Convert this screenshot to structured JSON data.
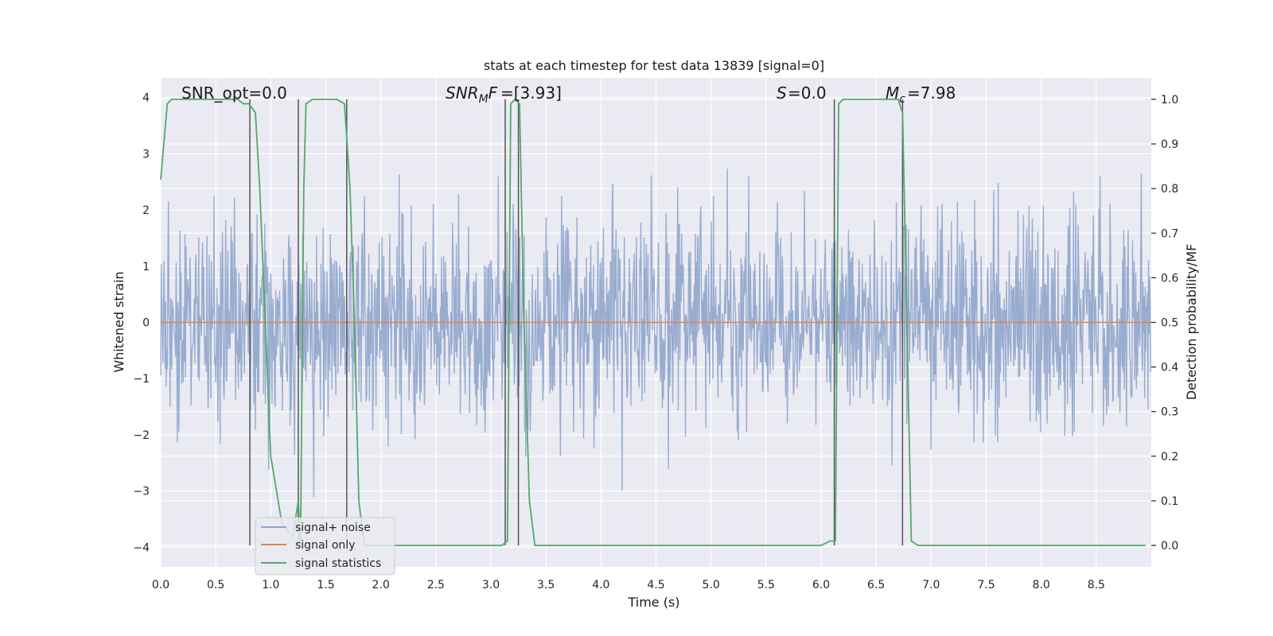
{
  "chart_data": {
    "type": "line",
    "title": "stats at each timestep for test data 13839 [signal=0]",
    "xlabel": "Time (s)",
    "ylabel": "Whitened strain",
    "y2label": "Detection probability/MF",
    "xlim": [
      0,
      9.0
    ],
    "ylim": [
      -4.35,
      4.35
    ],
    "y2lim": [
      -0.048,
      1.048
    ],
    "xticks": [
      "0.0",
      "0.5",
      "1.0",
      "1.5",
      "2.0",
      "2.5",
      "3.0",
      "3.5",
      "4.0",
      "4.5",
      "5.0",
      "5.5",
      "6.0",
      "6.5",
      "7.0",
      "7.5",
      "8.0",
      "8.5"
    ],
    "xtick_values": [
      0,
      0.5,
      1.0,
      1.5,
      2.0,
      2.5,
      3.0,
      3.5,
      4.0,
      4.5,
      5.0,
      5.5,
      6.0,
      6.5,
      7.0,
      7.5,
      8.0,
      8.5
    ],
    "yticks": [
      "−4",
      "−3",
      "−2",
      "−1",
      "0",
      "1",
      "2",
      "3",
      "4"
    ],
    "ytick_values": [
      -4,
      -3,
      -2,
      -1,
      0,
      1,
      2,
      3,
      4
    ],
    "y2ticks": [
      "0.0",
      "0.1",
      "0.2",
      "0.3",
      "0.4",
      "0.5",
      "0.6",
      "0.7",
      "0.8",
      "0.9",
      "1.0"
    ],
    "y2tick_values": [
      0,
      0.1,
      0.2,
      0.3,
      0.4,
      0.5,
      0.6,
      0.7,
      0.8,
      0.9,
      1.0
    ],
    "grid": true,
    "legend_position": "lower-left",
    "legend": [
      "signal+ noise",
      "signal only",
      "signal statistics"
    ],
    "colors": {
      "noise": "#8fa5cc",
      "signal": "#dd8452",
      "stats": "#55a868",
      "vlines": "#555555",
      "axes_bg": "#eaeaf2",
      "grid": "#ffffff"
    },
    "annotations": {
      "snr_opt": "SNR_opt=0.0",
      "snr_mf": "=[3.93]",
      "s": "=0.0",
      "mc": "=7.98"
    },
    "series": [
      {
        "name": "signal+ noise",
        "description": "whitened strain noise, amplitude roughly within ±1.6 with spikes up to about ±3.9"
      },
      {
        "name": "signal only",
        "x": [
          0,
          9.0
        ],
        "y": [
          0,
          0
        ]
      },
      {
        "name": "signal statistics",
        "axis": "right",
        "x": [
          0,
          0.06,
          0.1,
          0.2,
          0.5,
          0.7,
          0.75,
          0.8,
          0.86,
          0.9,
          0.95,
          1.0,
          1.1,
          1.2,
          1.25,
          1.27,
          1.3,
          1.32,
          1.38,
          1.5,
          1.6,
          1.67,
          1.72,
          1.76,
          1.8,
          1.85,
          2.0,
          2.5,
          3.0,
          3.1,
          3.15,
          3.18,
          3.22,
          3.26,
          3.3,
          3.35,
          3.4,
          3.6,
          4.0,
          5.0,
          6.0,
          6.08,
          6.13,
          6.16,
          6.2,
          6.5,
          6.7,
          6.74,
          6.78,
          6.82,
          6.88,
          7.0,
          8.0,
          8.95
        ],
        "y": [
          0.82,
          0.99,
          1.0,
          1.0,
          1.0,
          1.0,
          0.99,
          0.99,
          0.97,
          0.8,
          0.5,
          0.2,
          0.05,
          0.02,
          0.1,
          0.0,
          0.8,
          0.99,
          1.0,
          1.0,
          1.0,
          0.99,
          0.8,
          0.5,
          0.1,
          0.0,
          0.0,
          0.0,
          0.0,
          0.0,
          0.01,
          0.99,
          1.0,
          0.99,
          0.5,
          0.1,
          0.0,
          0.0,
          0.0,
          0.0,
          0.0,
          0.01,
          0.01,
          0.99,
          1.0,
          1.0,
          1.0,
          0.97,
          0.5,
          0.01,
          0.0,
          0.0,
          0.0,
          0.0
        ]
      }
    ],
    "vlines": [
      0.81,
      1.25,
      1.69,
      3.13,
      3.25,
      6.12,
      6.74
    ]
  }
}
